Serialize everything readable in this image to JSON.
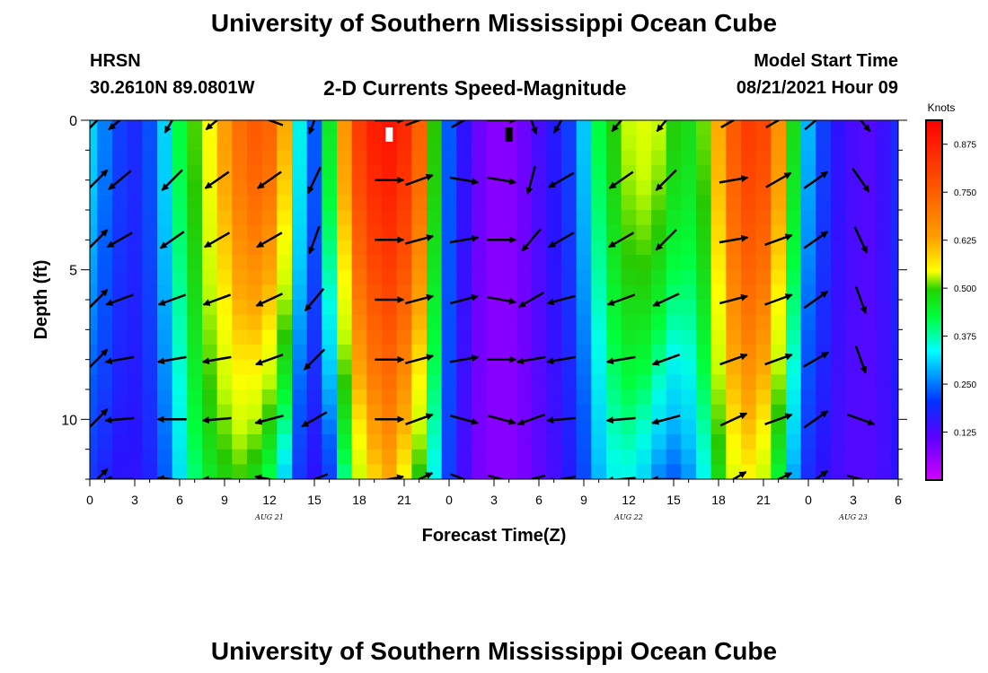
{
  "header": {
    "title": "University of Southern Mississippi Ocean Cube",
    "station": "HRSN",
    "coords": "30.2610N  89.0801W",
    "chart_title": "2-D Currents Speed-Magnitude",
    "model_label": "Model Start Time",
    "model_time": "08/21/2021 Hour 09",
    "footer_title": "University of Southern Mississippi Ocean Cube"
  },
  "chart_data": {
    "type": "heatmap",
    "title": "2-D Currents Speed-Magnitude",
    "xlabel": "Forecast Time(Z)",
    "ylabel": "Depth (ft)",
    "xlim": [
      0,
      54
    ],
    "ylim": [
      12,
      0
    ],
    "x_ticks": [
      {
        "v": 0,
        "label": "0"
      },
      {
        "v": 3,
        "label": "3"
      },
      {
        "v": 6,
        "label": "6"
      },
      {
        "v": 9,
        "label": "9"
      },
      {
        "v": 12,
        "label": "12"
      },
      {
        "v": 15,
        "label": "15"
      },
      {
        "v": 18,
        "label": "18"
      },
      {
        "v": 21,
        "label": "21"
      },
      {
        "v": 24,
        "label": "0"
      },
      {
        "v": 27,
        "label": "3"
      },
      {
        "v": 30,
        "label": "6"
      },
      {
        "v": 33,
        "label": "9"
      },
      {
        "v": 36,
        "label": "12"
      },
      {
        "v": 39,
        "label": "15"
      },
      {
        "v": 42,
        "label": "18"
      },
      {
        "v": 45,
        "label": "21"
      },
      {
        "v": 48,
        "label": "0"
      },
      {
        "v": 51,
        "label": "3"
      },
      {
        "v": 54,
        "label": "6"
      }
    ],
    "date_labels": [
      {
        "v": 12,
        "label": "AUG 21"
      },
      {
        "v": 36,
        "label": "AUG 22"
      },
      {
        "v": 51,
        "label": "AUG 23"
      }
    ],
    "y_ticks": [
      {
        "v": 0,
        "label": "0"
      },
      {
        "v": 5,
        "label": "5"
      },
      {
        "v": 10,
        "label": "10"
      }
    ],
    "colorbar": {
      "label": "Knots",
      "range": [
        0,
        0.9375
      ],
      "ticks": [
        "0.125",
        "0.250",
        "0.375",
        "0.500",
        "0.625",
        "0.750",
        "0.875"
      ],
      "tick_values": [
        0.125,
        0.25,
        0.375,
        0.5,
        0.625,
        0.75,
        0.875
      ]
    },
    "speed_profile": {
      "times": [
        0,
        1,
        2,
        3,
        4,
        5,
        6,
        7,
        8,
        9,
        10,
        11,
        12,
        13,
        14,
        15,
        16,
        17,
        18,
        19,
        20,
        21,
        22,
        23,
        24,
        25,
        26,
        27,
        28,
        29,
        30,
        31,
        32,
        33,
        34,
        35,
        36,
        37,
        38,
        39,
        40,
        41,
        42,
        43,
        44,
        45,
        46,
        47,
        48,
        49,
        50,
        51,
        52,
        53,
        54
      ],
      "surface": [
        0.27,
        0.22,
        0.17,
        0.15,
        0.19,
        0.27,
        0.37,
        0.46,
        0.55,
        0.64,
        0.72,
        0.76,
        0.74,
        0.62,
        0.3,
        0.2,
        0.4,
        0.65,
        0.82,
        0.88,
        0.9,
        0.86,
        0.75,
        0.45,
        0.2,
        0.12,
        0.07,
        0.05,
        0.05,
        0.07,
        0.1,
        0.13,
        0.17,
        0.26,
        0.37,
        0.44,
        0.5,
        0.52,
        0.5,
        0.44,
        0.42,
        0.47,
        0.62,
        0.76,
        0.82,
        0.8,
        0.66,
        0.42,
        0.25,
        0.17,
        0.12,
        0.1,
        0.09,
        0.11,
        0.15
      ],
      "bottom": [
        0.16,
        0.14,
        0.12,
        0.12,
        0.14,
        0.2,
        0.28,
        0.35,
        0.4,
        0.43,
        0.45,
        0.42,
        0.36,
        0.27,
        0.16,
        0.12,
        0.17,
        0.34,
        0.5,
        0.58,
        0.62,
        0.55,
        0.44,
        0.3,
        0.17,
        0.1,
        0.06,
        0.05,
        0.05,
        0.06,
        0.08,
        0.1,
        0.13,
        0.18,
        0.25,
        0.3,
        0.3,
        0.27,
        0.22,
        0.2,
        0.23,
        0.3,
        0.42,
        0.52,
        0.55,
        0.5,
        0.38,
        0.24,
        0.15,
        0.12,
        0.1,
        0.09,
        0.09,
        0.1,
        0.12
      ],
      "depth_exponent": 1.4
    },
    "vectors": {
      "depths": [
        0,
        2,
        4,
        6,
        8,
        10,
        12
      ],
      "columns": [
        {
          "t": 0.5,
          "deg": [
            45,
            45,
            45,
            45,
            45,
            45,
            45
          ]
        },
        {
          "t": 2.0,
          "deg": [
            -140,
            -140,
            -150,
            -160,
            -170,
            -175,
            180
          ]
        },
        {
          "t": 5.5,
          "deg": [
            -120,
            -135,
            -145,
            -160,
            -170,
            180,
            175
          ]
        },
        {
          "t": 8.5,
          "deg": [
            -140,
            -145,
            -150,
            -160,
            -170,
            -175,
            180
          ]
        },
        {
          "t": 12.0,
          "deg": [
            160,
            -145,
            -150,
            -155,
            -160,
            -165,
            170
          ]
        },
        {
          "t": 15.0,
          "deg": [
            -110,
            -115,
            -110,
            -130,
            -135,
            -150,
            -160
          ]
        },
        {
          "t": 20.0,
          "deg": [
            0,
            0,
            0,
            0,
            0,
            0,
            10
          ]
        },
        {
          "t": 22.0,
          "deg": [
            20,
            20,
            15,
            15,
            15,
            20,
            25
          ]
        },
        {
          "t": 25.0,
          "deg": [
            30,
            -10,
            10,
            15,
            10,
            -15,
            -20
          ]
        },
        {
          "t": 27.5,
          "deg": [
            0,
            -10,
            0,
            -10,
            0,
            -15,
            -15
          ]
        },
        {
          "t": 29.5,
          "deg": [
            -70,
            -105,
            -130,
            -150,
            -170,
            -160,
            -165
          ]
        },
        {
          "t": 31.5,
          "deg": [
            -120,
            -150,
            -150,
            -165,
            -170,
            -175,
            -170
          ]
        },
        {
          "t": 35.5,
          "deg": [
            -130,
            -145,
            -150,
            -160,
            -170,
            -175,
            -175
          ]
        },
        {
          "t": 38.5,
          "deg": [
            -130,
            -135,
            -135,
            -155,
            -160,
            -165,
            180
          ]
        },
        {
          "t": 43.0,
          "deg": [
            30,
            10,
            10,
            15,
            20,
            25,
            30
          ]
        },
        {
          "t": 46.0,
          "deg": [
            30,
            30,
            20,
            20,
            20,
            20,
            25
          ]
        },
        {
          "t": 48.5,
          "deg": [
            40,
            35,
            35,
            35,
            30,
            35,
            35
          ]
        },
        {
          "t": 51.5,
          "deg": [
            -50,
            -55,
            -65,
            -70,
            -70,
            -20,
            -15
          ]
        }
      ]
    },
    "markers": [
      {
        "t": 20.0,
        "depth": 0.3,
        "color": "#ffffff"
      },
      {
        "t": 28.0,
        "depth": 0.3,
        "color": "#000000"
      }
    ]
  }
}
